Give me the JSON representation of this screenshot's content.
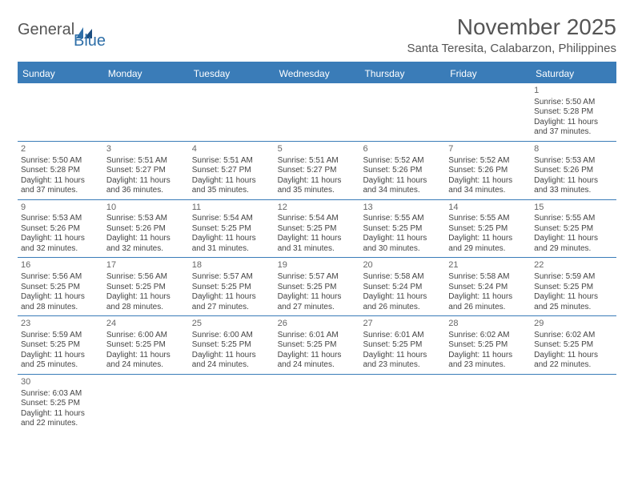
{
  "logo": {
    "word1": "General",
    "word2": "Blue"
  },
  "title": "November 2025",
  "location": "Santa Teresita, Calabarzon, Philippines",
  "colors": {
    "header_bg": "#3a7cb8",
    "header_text": "#ffffff",
    "body_text": "#444444",
    "title_text": "#555555",
    "logo_gray": "#555555",
    "logo_blue": "#2f6fa8"
  },
  "day_names": [
    "Sunday",
    "Monday",
    "Tuesday",
    "Wednesday",
    "Thursday",
    "Friday",
    "Saturday"
  ],
  "weeks": [
    [
      null,
      null,
      null,
      null,
      null,
      null,
      {
        "n": "1",
        "sr": "Sunrise: 5:50 AM",
        "ss": "Sunset: 5:28 PM",
        "dl": "Daylight: 11 hours and 37 minutes."
      }
    ],
    [
      {
        "n": "2",
        "sr": "Sunrise: 5:50 AM",
        "ss": "Sunset: 5:28 PM",
        "dl": "Daylight: 11 hours and 37 minutes."
      },
      {
        "n": "3",
        "sr": "Sunrise: 5:51 AM",
        "ss": "Sunset: 5:27 PM",
        "dl": "Daylight: 11 hours and 36 minutes."
      },
      {
        "n": "4",
        "sr": "Sunrise: 5:51 AM",
        "ss": "Sunset: 5:27 PM",
        "dl": "Daylight: 11 hours and 35 minutes."
      },
      {
        "n": "5",
        "sr": "Sunrise: 5:51 AM",
        "ss": "Sunset: 5:27 PM",
        "dl": "Daylight: 11 hours and 35 minutes."
      },
      {
        "n": "6",
        "sr": "Sunrise: 5:52 AM",
        "ss": "Sunset: 5:26 PM",
        "dl": "Daylight: 11 hours and 34 minutes."
      },
      {
        "n": "7",
        "sr": "Sunrise: 5:52 AM",
        "ss": "Sunset: 5:26 PM",
        "dl": "Daylight: 11 hours and 34 minutes."
      },
      {
        "n": "8",
        "sr": "Sunrise: 5:53 AM",
        "ss": "Sunset: 5:26 PM",
        "dl": "Daylight: 11 hours and 33 minutes."
      }
    ],
    [
      {
        "n": "9",
        "sr": "Sunrise: 5:53 AM",
        "ss": "Sunset: 5:26 PM",
        "dl": "Daylight: 11 hours and 32 minutes."
      },
      {
        "n": "10",
        "sr": "Sunrise: 5:53 AM",
        "ss": "Sunset: 5:26 PM",
        "dl": "Daylight: 11 hours and 32 minutes."
      },
      {
        "n": "11",
        "sr": "Sunrise: 5:54 AM",
        "ss": "Sunset: 5:25 PM",
        "dl": "Daylight: 11 hours and 31 minutes."
      },
      {
        "n": "12",
        "sr": "Sunrise: 5:54 AM",
        "ss": "Sunset: 5:25 PM",
        "dl": "Daylight: 11 hours and 31 minutes."
      },
      {
        "n": "13",
        "sr": "Sunrise: 5:55 AM",
        "ss": "Sunset: 5:25 PM",
        "dl": "Daylight: 11 hours and 30 minutes."
      },
      {
        "n": "14",
        "sr": "Sunrise: 5:55 AM",
        "ss": "Sunset: 5:25 PM",
        "dl": "Daylight: 11 hours and 29 minutes."
      },
      {
        "n": "15",
        "sr": "Sunrise: 5:55 AM",
        "ss": "Sunset: 5:25 PM",
        "dl": "Daylight: 11 hours and 29 minutes."
      }
    ],
    [
      {
        "n": "16",
        "sr": "Sunrise: 5:56 AM",
        "ss": "Sunset: 5:25 PM",
        "dl": "Daylight: 11 hours and 28 minutes."
      },
      {
        "n": "17",
        "sr": "Sunrise: 5:56 AM",
        "ss": "Sunset: 5:25 PM",
        "dl": "Daylight: 11 hours and 28 minutes."
      },
      {
        "n": "18",
        "sr": "Sunrise: 5:57 AM",
        "ss": "Sunset: 5:25 PM",
        "dl": "Daylight: 11 hours and 27 minutes."
      },
      {
        "n": "19",
        "sr": "Sunrise: 5:57 AM",
        "ss": "Sunset: 5:25 PM",
        "dl": "Daylight: 11 hours and 27 minutes."
      },
      {
        "n": "20",
        "sr": "Sunrise: 5:58 AM",
        "ss": "Sunset: 5:24 PM",
        "dl": "Daylight: 11 hours and 26 minutes."
      },
      {
        "n": "21",
        "sr": "Sunrise: 5:58 AM",
        "ss": "Sunset: 5:24 PM",
        "dl": "Daylight: 11 hours and 26 minutes."
      },
      {
        "n": "22",
        "sr": "Sunrise: 5:59 AM",
        "ss": "Sunset: 5:25 PM",
        "dl": "Daylight: 11 hours and 25 minutes."
      }
    ],
    [
      {
        "n": "23",
        "sr": "Sunrise: 5:59 AM",
        "ss": "Sunset: 5:25 PM",
        "dl": "Daylight: 11 hours and 25 minutes."
      },
      {
        "n": "24",
        "sr": "Sunrise: 6:00 AM",
        "ss": "Sunset: 5:25 PM",
        "dl": "Daylight: 11 hours and 24 minutes."
      },
      {
        "n": "25",
        "sr": "Sunrise: 6:00 AM",
        "ss": "Sunset: 5:25 PM",
        "dl": "Daylight: 11 hours and 24 minutes."
      },
      {
        "n": "26",
        "sr": "Sunrise: 6:01 AM",
        "ss": "Sunset: 5:25 PM",
        "dl": "Daylight: 11 hours and 24 minutes."
      },
      {
        "n": "27",
        "sr": "Sunrise: 6:01 AM",
        "ss": "Sunset: 5:25 PM",
        "dl": "Daylight: 11 hours and 23 minutes."
      },
      {
        "n": "28",
        "sr": "Sunrise: 6:02 AM",
        "ss": "Sunset: 5:25 PM",
        "dl": "Daylight: 11 hours and 23 minutes."
      },
      {
        "n": "29",
        "sr": "Sunrise: 6:02 AM",
        "ss": "Sunset: 5:25 PM",
        "dl": "Daylight: 11 hours and 22 minutes."
      }
    ],
    [
      {
        "n": "30",
        "sr": "Sunrise: 6:03 AM",
        "ss": "Sunset: 5:25 PM",
        "dl": "Daylight: 11 hours and 22 minutes."
      },
      null,
      null,
      null,
      null,
      null,
      null
    ]
  ]
}
